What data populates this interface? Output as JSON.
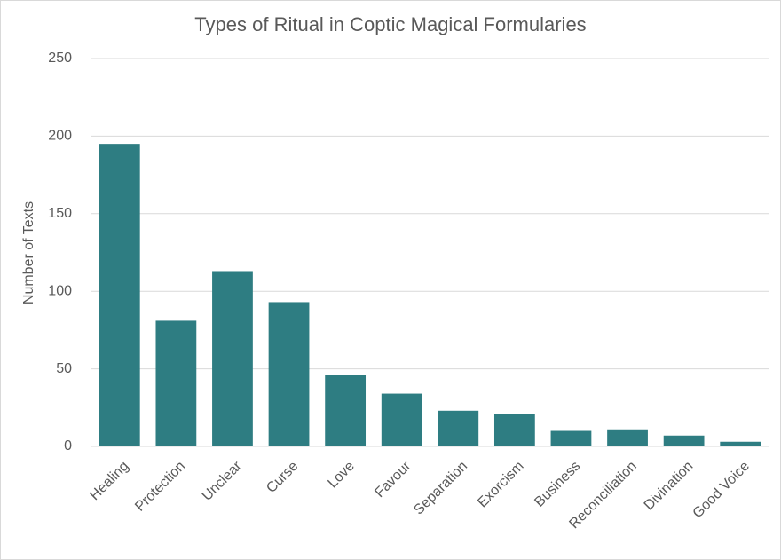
{
  "chart_data": {
    "type": "bar",
    "title": "Types of Ritual in Coptic Magical Formularies",
    "y_label": "Number of Texts",
    "categories": [
      "Healing",
      "Protection",
      "Unclear",
      "Curse",
      "Love",
      "Favour",
      "Separation",
      "Exorcism",
      "Business",
      "Reconciliation",
      "Divination",
      "Good Voice"
    ],
    "values": [
      195,
      81,
      113,
      93,
      46,
      34,
      23,
      21,
      10,
      11,
      7,
      3
    ],
    "color": "#2e7d82",
    "ylim": [
      0,
      250
    ],
    "yticks": [
      0,
      50,
      100,
      150,
      200,
      250
    ],
    "grid": true
  }
}
